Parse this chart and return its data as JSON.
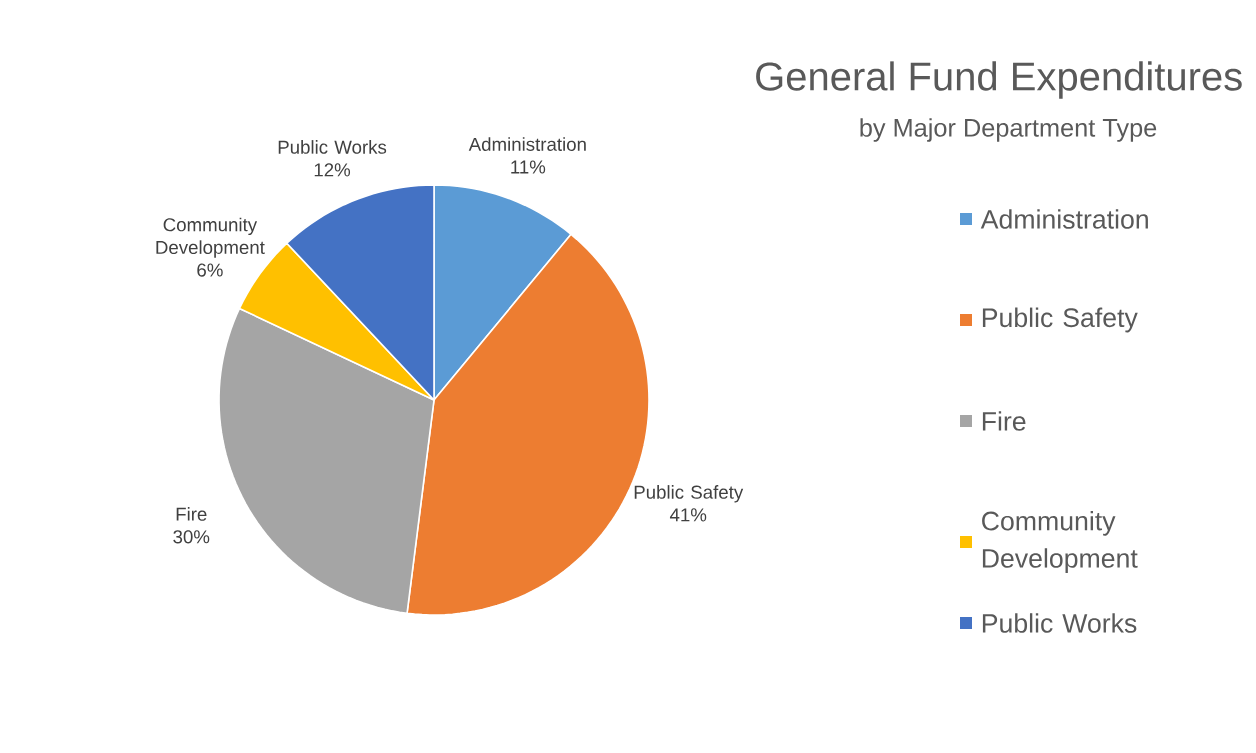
{
  "chart_data": {
    "type": "pie",
    "title": "General Fund Expenditures",
    "subtitle": "by Major Department Type",
    "categories": [
      "Administration",
      "Public Safety",
      "Fire",
      "Community Development",
      "Public Works"
    ],
    "values": [
      11,
      41,
      30,
      6,
      12
    ],
    "value_labels": [
      "11%",
      "41%",
      "30%",
      "6%",
      "12%"
    ],
    "colors": [
      "#5b9bd5",
      "#ed7d31",
      "#a5a5a5",
      "#ffc000",
      "#4472c4"
    ],
    "legend": "right"
  }
}
